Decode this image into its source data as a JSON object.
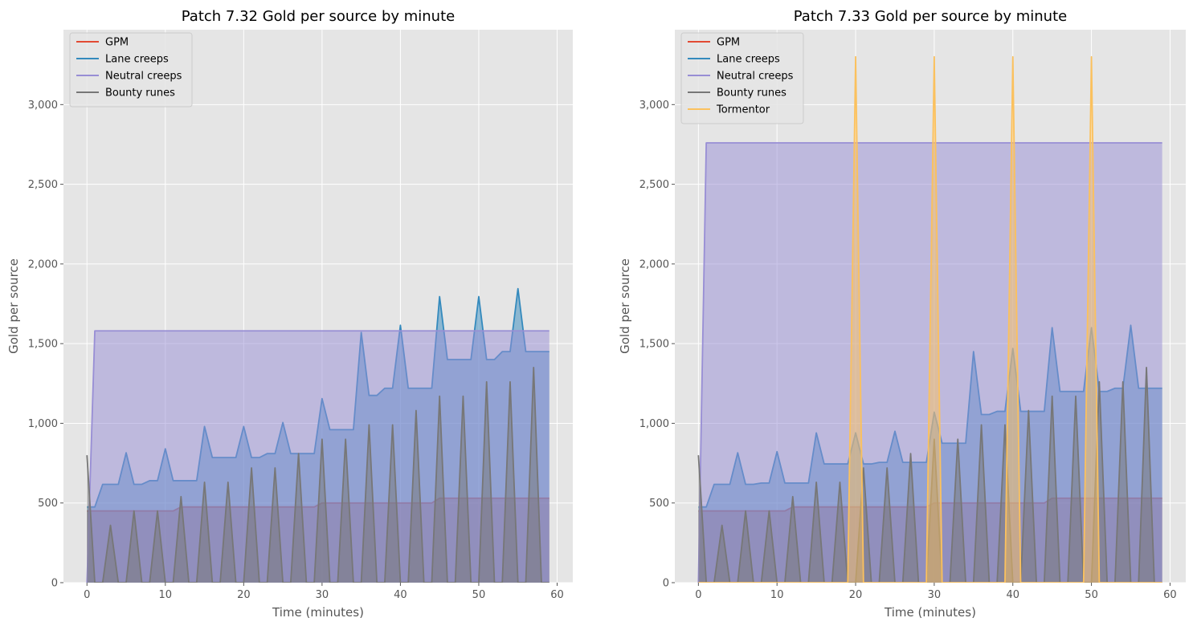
{
  "chart_data": [
    {
      "type": "line",
      "title": "Patch 7.32 Gold per source by minute",
      "xlabel": "Time (minutes)",
      "ylabel": "Gold per source",
      "xlim": [
        -3,
        62
      ],
      "ylim": [
        0,
        3470
      ],
      "xticks": [
        0,
        10,
        20,
        30,
        40,
        50,
        60
      ],
      "yticks": [
        0,
        500,
        1000,
        1500,
        2000,
        2500,
        3000
      ],
      "grid": true,
      "legend_position": "top-left",
      "filled_under_lines": true,
      "series": [
        {
          "name": "GPM",
          "color": "#e24a33",
          "points": [
            [
              0,
              450
            ],
            [
              10,
              450
            ],
            [
              11,
              450
            ],
            [
              12,
              475
            ],
            [
              29,
              475
            ],
            [
              30,
              500
            ],
            [
              44,
              500
            ],
            [
              45,
              530
            ],
            [
              59,
              530
            ]
          ]
        },
        {
          "name": "Lane creeps",
          "color": "#348abd",
          "points": [
            [
              0,
              475
            ],
            [
              1,
              475
            ],
            [
              2,
              617
            ],
            [
              4,
              617
            ],
            [
              5,
              815
            ],
            [
              6,
              617
            ],
            [
              7,
              617
            ],
            [
              8,
              640
            ],
            [
              9,
              640
            ],
            [
              10,
              840
            ],
            [
              11,
              640
            ],
            [
              14,
              640
            ],
            [
              15,
              980
            ],
            [
              16,
              785
            ],
            [
              19,
              785
            ],
            [
              20,
              980
            ],
            [
              21,
              785
            ],
            [
              22,
              785
            ],
            [
              23,
              810
            ],
            [
              24,
              810
            ],
            [
              25,
              1005
            ],
            [
              26,
              810
            ],
            [
              29,
              810
            ],
            [
              30,
              1155
            ],
            [
              31,
              960
            ],
            [
              34,
              960
            ],
            [
              35,
              1570
            ],
            [
              36,
              1175
            ],
            [
              37,
              1175
            ],
            [
              38,
              1220
            ],
            [
              39,
              1220
            ],
            [
              40,
              1615
            ],
            [
              41,
              1220
            ],
            [
              44,
              1220
            ],
            [
              45,
              1795
            ],
            [
              46,
              1400
            ],
            [
              49,
              1400
            ],
            [
              50,
              1795
            ],
            [
              51,
              1400
            ],
            [
              52,
              1400
            ],
            [
              53,
              1450
            ],
            [
              54,
              1450
            ],
            [
              55,
              1845
            ],
            [
              56,
              1450
            ],
            [
              59,
              1450
            ]
          ]
        },
        {
          "name": "Neutral creeps",
          "color": "#988ed5",
          "points": [
            [
              0,
              0
            ],
            [
              1,
              1580
            ],
            [
              59,
              1580
            ]
          ]
        },
        {
          "name": "Bounty runes",
          "color": "#777777",
          "points": [
            [
              0,
              800
            ],
            [
              1,
              0
            ],
            [
              2,
              0
            ],
            [
              3,
              360
            ],
            [
              4,
              0
            ],
            [
              5,
              0
            ],
            [
              6,
              450
            ],
            [
              7,
              0
            ],
            [
              8,
              0
            ],
            [
              9,
              450
            ],
            [
              10,
              0
            ],
            [
              11,
              0
            ],
            [
              12,
              540
            ],
            [
              13,
              0
            ],
            [
              14,
              0
            ],
            [
              15,
              630
            ],
            [
              16,
              0
            ],
            [
              17,
              0
            ],
            [
              18,
              630
            ],
            [
              19,
              0
            ],
            [
              20,
              0
            ],
            [
              21,
              720
            ],
            [
              22,
              0
            ],
            [
              23,
              0
            ],
            [
              24,
              720
            ],
            [
              25,
              0
            ],
            [
              26,
              0
            ],
            [
              27,
              810
            ],
            [
              28,
              0
            ],
            [
              29,
              0
            ],
            [
              30,
              900
            ],
            [
              31,
              0
            ],
            [
              32,
              0
            ],
            [
              33,
              900
            ],
            [
              34,
              0
            ],
            [
              35,
              0
            ],
            [
              36,
              990
            ],
            [
              37,
              0
            ],
            [
              38,
              0
            ],
            [
              39,
              990
            ],
            [
              40,
              0
            ],
            [
              41,
              0
            ],
            [
              42,
              1080
            ],
            [
              43,
              0
            ],
            [
              44,
              0
            ],
            [
              45,
              1170
            ],
            [
              46,
              0
            ],
            [
              47,
              0
            ],
            [
              48,
              1170
            ],
            [
              49,
              0
            ],
            [
              50,
              0
            ],
            [
              51,
              1260
            ],
            [
              52,
              0
            ],
            [
              53,
              0
            ],
            [
              54,
              1260
            ],
            [
              55,
              0
            ],
            [
              56,
              0
            ],
            [
              57,
              1350
            ],
            [
              58,
              0
            ],
            [
              59,
              0
            ]
          ]
        }
      ]
    },
    {
      "type": "line",
      "title": "Patch 7.33 Gold per source by minute",
      "xlabel": "Time (minutes)",
      "ylabel": "Gold per source",
      "xlim": [
        -3,
        62
      ],
      "ylim": [
        0,
        3470
      ],
      "xticks": [
        0,
        10,
        20,
        30,
        40,
        50,
        60
      ],
      "yticks": [
        0,
        500,
        1000,
        1500,
        2000,
        2500,
        3000
      ],
      "grid": true,
      "legend_position": "top-left",
      "filled_under_lines": true,
      "series": [
        {
          "name": "GPM",
          "color": "#e24a33",
          "points": [
            [
              0,
              450
            ],
            [
              10,
              450
            ],
            [
              11,
              450
            ],
            [
              12,
              475
            ],
            [
              29,
              475
            ],
            [
              30,
              500
            ],
            [
              44,
              500
            ],
            [
              45,
              530
            ],
            [
              59,
              530
            ]
          ]
        },
        {
          "name": "Lane creeps",
          "color": "#348abd",
          "points": [
            [
              0,
              475
            ],
            [
              1,
              475
            ],
            [
              2,
              617
            ],
            [
              4,
              617
            ],
            [
              5,
              815
            ],
            [
              6,
              617
            ],
            [
              7,
              617
            ],
            [
              8,
              625
            ],
            [
              9,
              625
            ],
            [
              10,
              822
            ],
            [
              11,
              625
            ],
            [
              14,
              625
            ],
            [
              15,
              940
            ],
            [
              16,
              745
            ],
            [
              19,
              745
            ],
            [
              20,
              940
            ],
            [
              21,
              745
            ],
            [
              22,
              745
            ],
            [
              23,
              755
            ],
            [
              24,
              755
            ],
            [
              25,
              950
            ],
            [
              26,
              755
            ],
            [
              29,
              755
            ],
            [
              30,
              1070
            ],
            [
              31,
              875
            ],
            [
              34,
              875
            ],
            [
              35,
              1450
            ],
            [
              36,
              1055
            ],
            [
              37,
              1055
            ],
            [
              38,
              1075
            ],
            [
              39,
              1075
            ],
            [
              40,
              1470
            ],
            [
              41,
              1075
            ],
            [
              44,
              1075
            ],
            [
              45,
              1600
            ],
            [
              46,
              1200
            ],
            [
              49,
              1200
            ],
            [
              50,
              1600
            ],
            [
              51,
              1200
            ],
            [
              52,
              1200
            ],
            [
              53,
              1220
            ],
            [
              54,
              1220
            ],
            [
              55,
              1615
            ],
            [
              56,
              1220
            ],
            [
              59,
              1220
            ]
          ]
        },
        {
          "name": "Neutral creeps",
          "color": "#988ed5",
          "points": [
            [
              0,
              0
            ],
            [
              1,
              2760
            ],
            [
              59,
              2760
            ]
          ]
        },
        {
          "name": "Bounty runes",
          "color": "#777777",
          "points": [
            [
              0,
              800
            ],
            [
              1,
              0
            ],
            [
              2,
              0
            ],
            [
              3,
              360
            ],
            [
              4,
              0
            ],
            [
              5,
              0
            ],
            [
              6,
              450
            ],
            [
              7,
              0
            ],
            [
              8,
              0
            ],
            [
              9,
              450
            ],
            [
              10,
              0
            ],
            [
              11,
              0
            ],
            [
              12,
              540
            ],
            [
              13,
              0
            ],
            [
              14,
              0
            ],
            [
              15,
              630
            ],
            [
              16,
              0
            ],
            [
              17,
              0
            ],
            [
              18,
              630
            ],
            [
              19,
              0
            ],
            [
              20,
              0
            ],
            [
              21,
              720
            ],
            [
              22,
              0
            ],
            [
              23,
              0
            ],
            [
              24,
              720
            ],
            [
              25,
              0
            ],
            [
              26,
              0
            ],
            [
              27,
              810
            ],
            [
              28,
              0
            ],
            [
              29,
              0
            ],
            [
              30,
              900
            ],
            [
              31,
              0
            ],
            [
              32,
              0
            ],
            [
              33,
              900
            ],
            [
              34,
              0
            ],
            [
              35,
              0
            ],
            [
              36,
              990
            ],
            [
              37,
              0
            ],
            [
              38,
              0
            ],
            [
              39,
              990
            ],
            [
              40,
              0
            ],
            [
              41,
              0
            ],
            [
              42,
              1080
            ],
            [
              43,
              0
            ],
            [
              44,
              0
            ],
            [
              45,
              1170
            ],
            [
              46,
              0
            ],
            [
              47,
              0
            ],
            [
              48,
              1170
            ],
            [
              49,
              0
            ],
            [
              50,
              0
            ],
            [
              51,
              1260
            ],
            [
              52,
              0
            ],
            [
              53,
              0
            ],
            [
              54,
              1260
            ],
            [
              55,
              0
            ],
            [
              56,
              0
            ],
            [
              57,
              1350
            ],
            [
              58,
              0
            ],
            [
              59,
              0
            ]
          ]
        },
        {
          "name": "Tormentor",
          "color": "#fbc15e",
          "points": [
            [
              0,
              0
            ],
            [
              19,
              0
            ],
            [
              20,
              3300
            ],
            [
              21,
              0
            ],
            [
              29,
              0
            ],
            [
              30,
              3300
            ],
            [
              31,
              0
            ],
            [
              39,
              0
            ],
            [
              40,
              3300
            ],
            [
              41,
              0
            ],
            [
              49,
              0
            ],
            [
              50,
              3300
            ],
            [
              51,
              0
            ],
            [
              59,
              0
            ]
          ]
        }
      ]
    }
  ]
}
